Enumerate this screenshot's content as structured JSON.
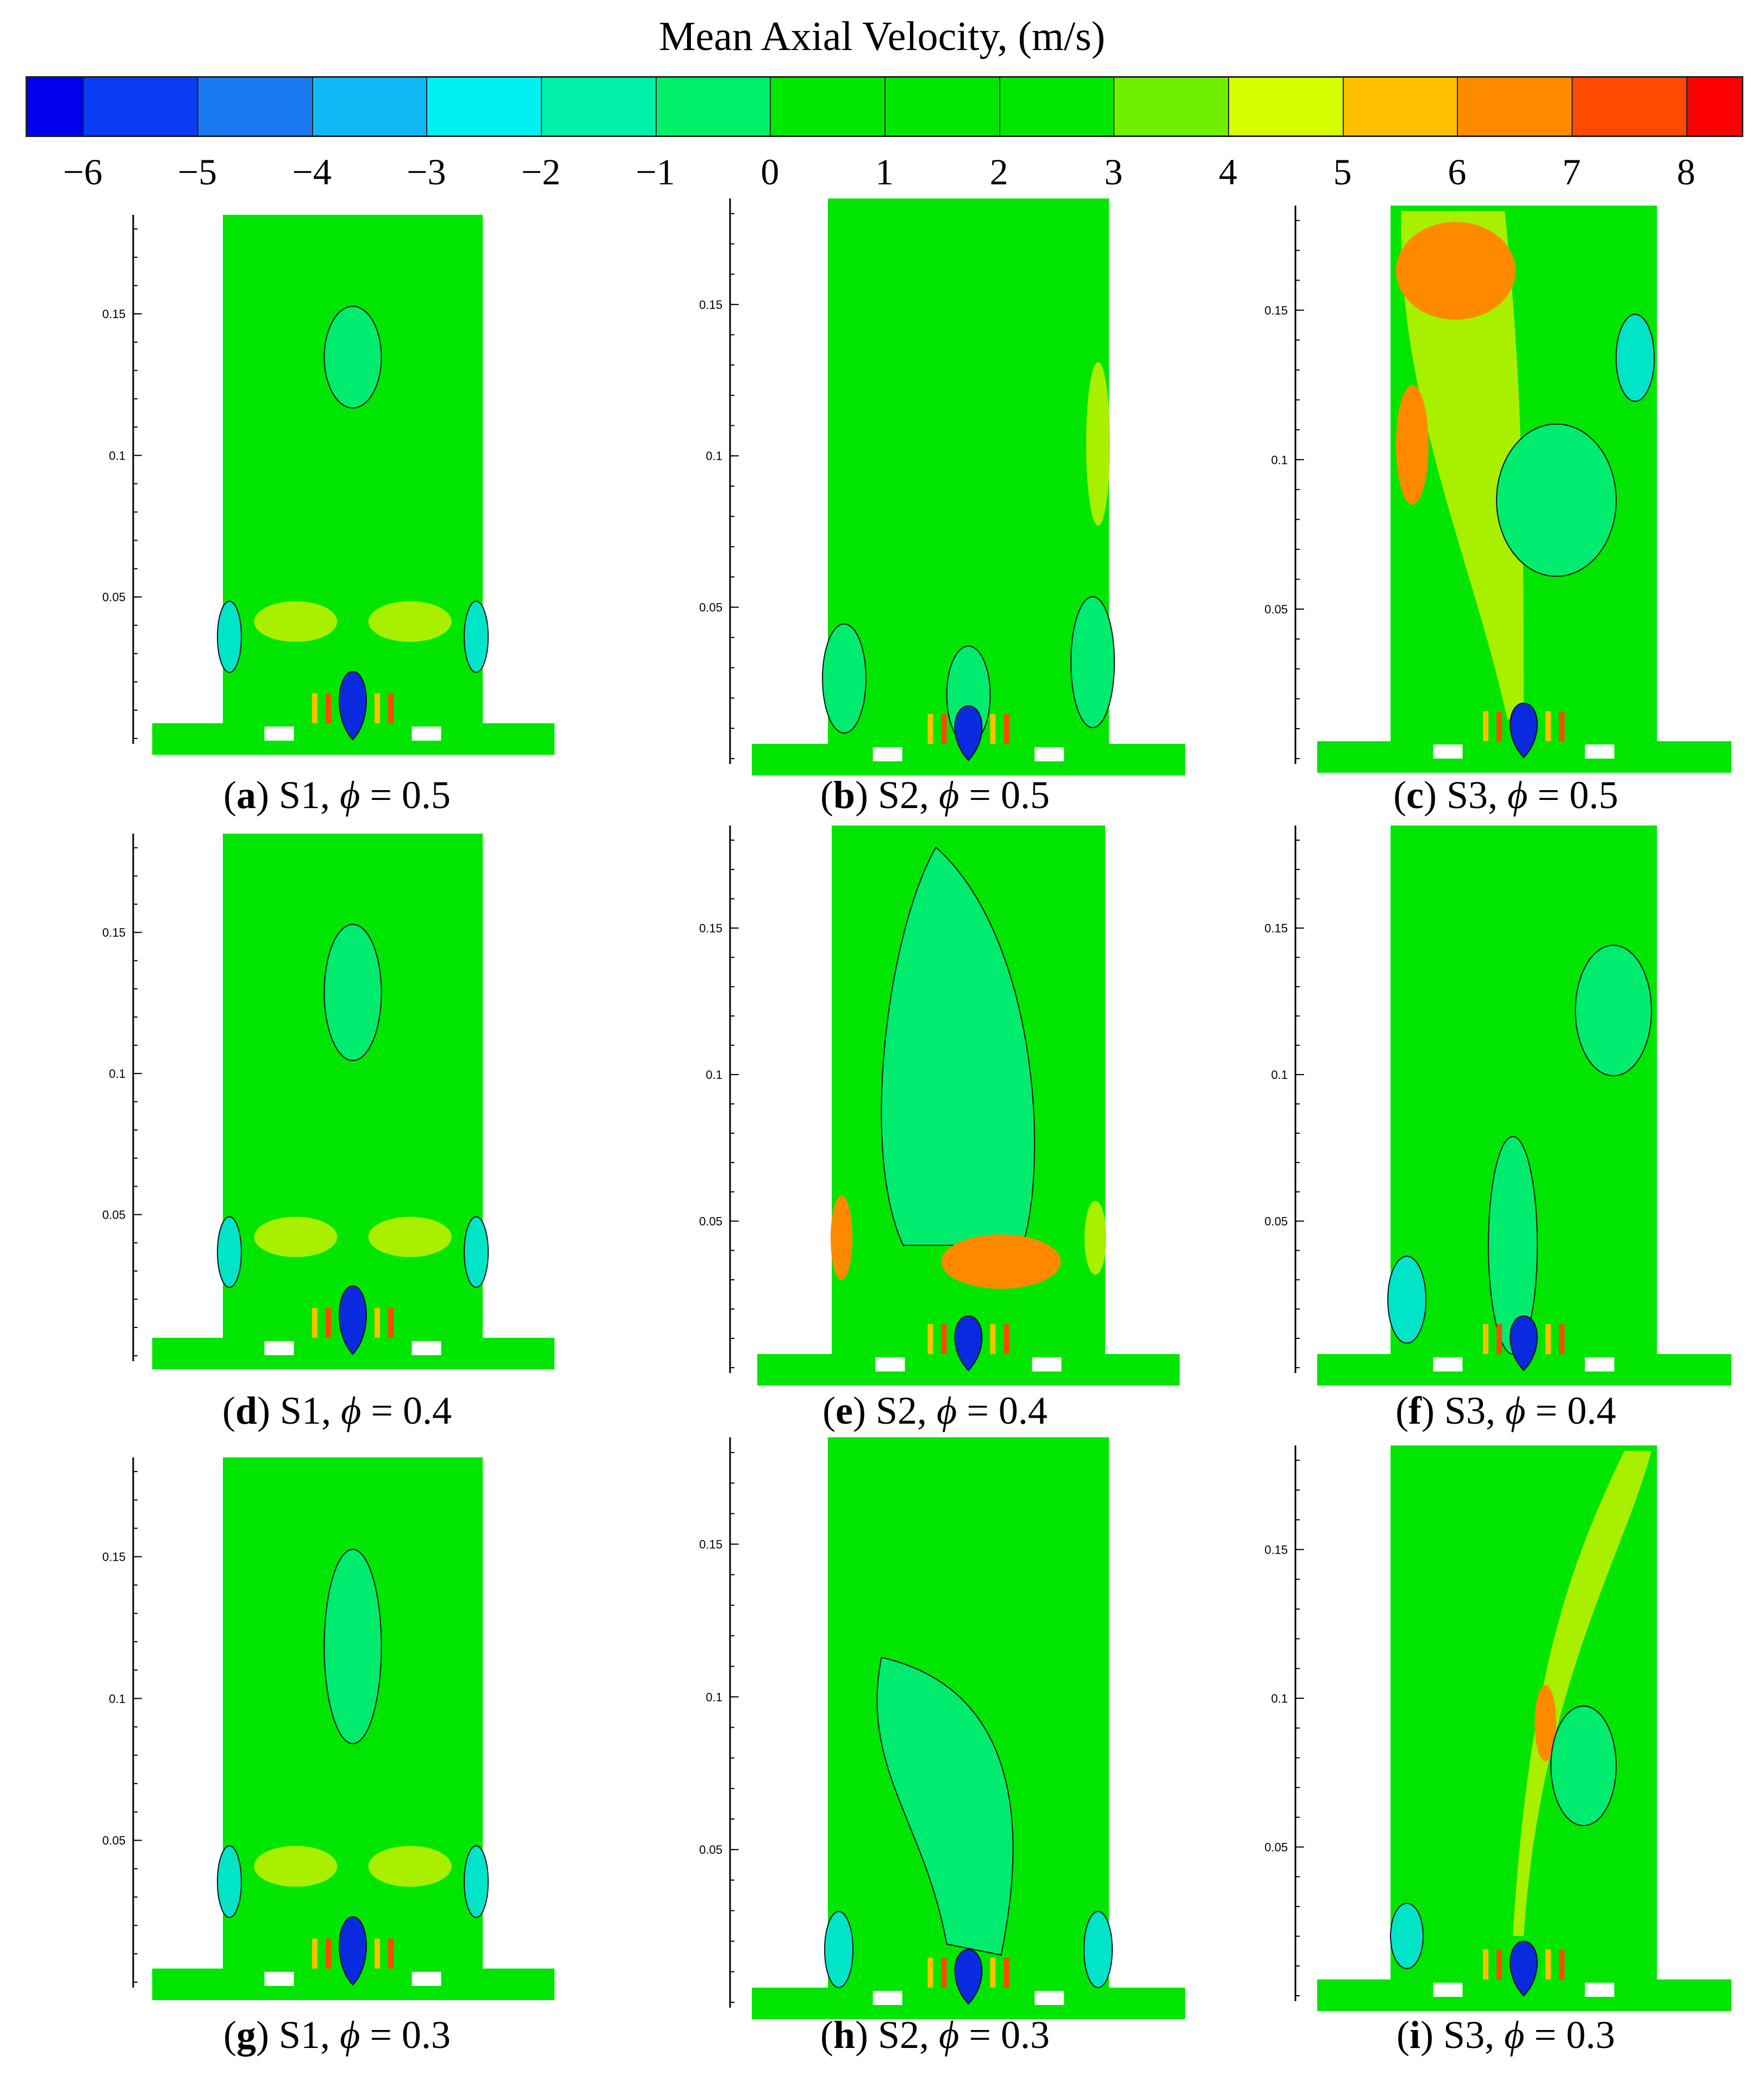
{
  "colorbar": {
    "title": "Mean Axial Velocity, (m/s)",
    "ticks": [
      "−6",
      "−5",
      "−4",
      "−3",
      "−2",
      "−1",
      "0",
      "1",
      "2",
      "3",
      "4",
      "5",
      "6",
      "7",
      "8"
    ],
    "levels": [
      -6.5,
      -6,
      -5,
      -4,
      -3,
      -2,
      -1,
      0,
      1,
      2,
      3,
      4,
      5,
      6,
      7,
      8,
      8.5
    ],
    "colors": [
      "#0000ee",
      "#0a3cf2",
      "#1a78f0",
      "#10b8f5",
      "#00f0f0",
      "#00f0a8",
      "#00f06a",
      "#00e800",
      "#00e600",
      "#00e600",
      "#70f000",
      "#d8ff00",
      "#ffc000",
      "#ff8a00",
      "#ff4a00",
      "#ff0000"
    ]
  },
  "chart_data": {
    "type": "contour",
    "title": "Mean Axial Velocity, (m/s)",
    "quantity_unit": "m/s",
    "color_range": [
      -6,
      8
    ],
    "y_axis_ticks": [
      "0.05",
      "0.1",
      "0.15"
    ],
    "ylim": [
      0,
      0.185
    ],
    "panels": [
      {
        "id": "a",
        "case": "S1",
        "phi": 0.5
      },
      {
        "id": "b",
        "case": "S2",
        "phi": 0.5
      },
      {
        "id": "c",
        "case": "S3",
        "phi": 0.5
      },
      {
        "id": "d",
        "case": "S1",
        "phi": 0.4
      },
      {
        "id": "e",
        "case": "S2",
        "phi": 0.4
      },
      {
        "id": "f",
        "case": "S3",
        "phi": 0.4
      },
      {
        "id": "g",
        "case": "S1",
        "phi": 0.3
      },
      {
        "id": "h",
        "case": "S2",
        "phi": 0.3
      },
      {
        "id": "i",
        "case": "S3",
        "phi": 0.3
      }
    ]
  },
  "panels": [
    {
      "letter": "a",
      "rest": " S1, ",
      "phi_symbol": "ϕ",
      "phi_text": " = 0.5"
    },
    {
      "letter": "b",
      "rest": " S2, ",
      "phi_symbol": "ϕ",
      "phi_text": " = 0.5"
    },
    {
      "letter": "c",
      "rest": " S3, ",
      "phi_symbol": "ϕ",
      "phi_text": " = 0.5"
    },
    {
      "letter": "d",
      "rest": " S1, ",
      "phi_symbol": "ϕ",
      "phi_text": " = 0.4"
    },
    {
      "letter": "e",
      "rest": " S2, ",
      "phi_symbol": "ϕ",
      "phi_text": " = 0.4"
    },
    {
      "letter": "f",
      "rest": " S3, ",
      "phi_symbol": "ϕ",
      "phi_text": " = 0.4"
    },
    {
      "letter": "g",
      "rest": " S1, ",
      "phi_symbol": "ϕ",
      "phi_text": " = 0.3"
    },
    {
      "letter": "h",
      "rest": " S2, ",
      "phi_symbol": "ϕ",
      "phi_text": " = 0.3"
    },
    {
      "letter": "i",
      "rest": " S3, ",
      "phi_symbol": "ϕ",
      "phi_text": " = 0.3"
    }
  ],
  "colors": {
    "background_field": "#00e600",
    "light_region": "#00ec6e",
    "cyan_region": "#00e4c8",
    "yellow_green_region": "#a8f000",
    "orange_region": "#ff8a00",
    "blue_core": "#0a2ae0",
    "contour_line": "#111111"
  }
}
